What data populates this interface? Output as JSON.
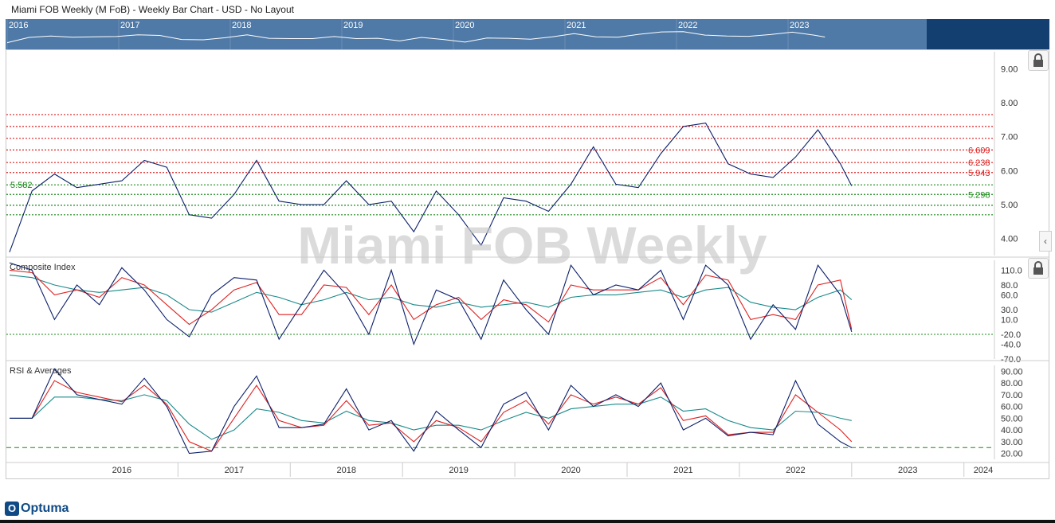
{
  "header": {
    "title": "Miami FOB Weekly (M FoB) - Weekly Bar Chart - USD - No Layout"
  },
  "navigator": {
    "years": [
      "2016",
      "2017",
      "2018",
      "2019",
      "2020",
      "2021",
      "2022",
      "2023"
    ]
  },
  "watermark": "Miami FOB Weekly",
  "colors": {
    "price": "#0b1f6b",
    "red": "#e02020",
    "green": "#1a8a1a",
    "teal": "#1a8a8a",
    "navy": "#0b1f6b",
    "nav": "#4f79a6"
  },
  "icons": [
    "lock-icon",
    "chevron-left-icon",
    "optuma-logo-icon"
  ],
  "brand": {
    "logo_text": "Optuma",
    "logo_mark": "O"
  },
  "chart_data": [
    {
      "type": "line",
      "title": "Miami FOB Weekly",
      "x_axis_labels": [
        "2016",
        "2017",
        "2018",
        "2019",
        "2020",
        "2021",
        "2022",
        "2023",
        "2024"
      ],
      "y_ticks": [
        "9.00",
        "8.00",
        "7.00",
        "6.00",
        "5.00",
        "4.00"
      ],
      "ylim": [
        3.5,
        9.5
      ],
      "resistance_levels": [
        7.65,
        7.3,
        6.95,
        6.609,
        6.238,
        5.943
      ],
      "support_levels": [
        5.582,
        5.298,
        4.98,
        4.7
      ],
      "level_labels": {
        "left": "5.582",
        "r1": "6.609",
        "r2": "6.238",
        "r3": "5.943",
        "s1": "5.298"
      },
      "series": [
        {
          "x": [
            2015.5,
            2015.7,
            2015.9,
            2016.1,
            2016.3,
            2016.5,
            2016.7,
            2016.9,
            2017.1,
            2017.3,
            2017.5,
            2017.7,
            2017.9,
            2018.1,
            2018.3,
            2018.5,
            2018.7,
            2018.9,
            2019.1,
            2019.3,
            2019.5,
            2019.7,
            2019.9,
            2020.1,
            2020.3,
            2020.5,
            2020.7,
            2020.9,
            2021.1,
            2021.3,
            2021.5,
            2021.7,
            2021.9,
            2022.1,
            2022.3,
            2022.5,
            2022.7,
            2022.9,
            2023.0
          ],
          "values": [
            3.6,
            5.4,
            5.9,
            5.5,
            5.6,
            5.7,
            6.3,
            6.1,
            4.7,
            4.6,
            5.3,
            6.3,
            5.1,
            5.0,
            5.0,
            5.7,
            5.0,
            5.1,
            4.2,
            5.4,
            4.7,
            3.8,
            5.2,
            5.1,
            4.8,
            5.6,
            6.7,
            5.6,
            5.5,
            6.5,
            7.3,
            7.4,
            6.2,
            5.9,
            5.8,
            6.4,
            7.2,
            6.2,
            5.55
          ]
        }
      ]
    },
    {
      "type": "line",
      "title": "Composite Index",
      "y_ticks": [
        "110.0",
        "80.0",
        "60.0",
        "30.0",
        "10.0",
        "-20.0",
        "-40.0",
        "-70.0"
      ],
      "ylim": [
        -70,
        130
      ],
      "x": [
        2015.5,
        2015.7,
        2015.9,
        2016.1,
        2016.3,
        2016.5,
        2016.7,
        2016.9,
        2017.1,
        2017.3,
        2017.5,
        2017.7,
        2017.9,
        2018.1,
        2018.3,
        2018.5,
        2018.7,
        2018.9,
        2019.1,
        2019.3,
        2019.5,
        2019.7,
        2019.9,
        2020.1,
        2020.3,
        2020.5,
        2020.7,
        2020.9,
        2021.1,
        2021.3,
        2021.5,
        2021.7,
        2021.9,
        2022.1,
        2022.3,
        2022.5,
        2022.7,
        2022.9,
        2023.0
      ],
      "series": [
        {
          "values": [
            125,
            110,
            10,
            80,
            40,
            115,
            70,
            10,
            -25,
            60,
            95,
            90,
            -30,
            40,
            110,
            60,
            -20,
            110,
            -40,
            70,
            50,
            -30,
            90,
            30,
            -20,
            120,
            60,
            80,
            70,
            110,
            10,
            120,
            80,
            -30,
            40,
            -10,
            120,
            60,
            -15
          ]
        },
        {
          "values": [
            110,
            105,
            60,
            70,
            55,
            95,
            80,
            40,
            0,
            30,
            70,
            85,
            20,
            20,
            80,
            75,
            20,
            80,
            10,
            40,
            55,
            10,
            50,
            40,
            5,
            80,
            70,
            70,
            70,
            95,
            40,
            100,
            90,
            10,
            20,
            10,
            80,
            90,
            -10
          ]
        },
        {
          "values": [
            100,
            95,
            80,
            70,
            65,
            70,
            75,
            60,
            30,
            25,
            45,
            65,
            55,
            40,
            50,
            65,
            50,
            55,
            40,
            35,
            45,
            35,
            40,
            45,
            35,
            55,
            60,
            60,
            65,
            70,
            55,
            70,
            75,
            45,
            35,
            30,
            55,
            70,
            50
          ]
        }
      ],
      "series_colors": [
        "#0b1f6b",
        "#e02020",
        "#1a8a8a"
      ]
    },
    {
      "type": "line",
      "title": "RSI & Averages",
      "y_ticks": [
        "90.00",
        "80.00",
        "70.00",
        "60.00",
        "50.00",
        "40.00",
        "30.00",
        "20.00"
      ],
      "ylim": [
        15,
        95
      ],
      "threshold": 25,
      "x": [
        2015.5,
        2015.7,
        2015.9,
        2016.1,
        2016.3,
        2016.5,
        2016.7,
        2016.9,
        2017.1,
        2017.3,
        2017.5,
        2017.7,
        2017.9,
        2018.1,
        2018.3,
        2018.5,
        2018.7,
        2018.9,
        2019.1,
        2019.3,
        2019.5,
        2019.7,
        2019.9,
        2020.1,
        2020.3,
        2020.5,
        2020.7,
        2020.9,
        2021.1,
        2021.3,
        2021.5,
        2021.7,
        2021.9,
        2022.1,
        2022.3,
        2022.5,
        2022.7,
        2022.9,
        2023.0
      ],
      "series": [
        {
          "values": [
            50,
            50,
            92,
            70,
            66,
            62,
            84,
            60,
            20,
            22,
            60,
            86,
            42,
            42,
            45,
            75,
            40,
            48,
            22,
            56,
            40,
            25,
            62,
            72,
            40,
            78,
            60,
            70,
            60,
            80,
            40,
            50,
            35,
            38,
            36,
            82,
            45,
            30,
            25
          ]
        },
        {
          "values": [
            50,
            50,
            82,
            72,
            68,
            64,
            78,
            62,
            30,
            22,
            50,
            78,
            48,
            42,
            44,
            65,
            44,
            46,
            30,
            48,
            42,
            30,
            55,
            65,
            45,
            70,
            62,
            68,
            62,
            76,
            48,
            52,
            36,
            38,
            38,
            70,
            55,
            40,
            30
          ]
        },
        {
          "values": [
            50,
            50,
            68,
            68,
            66,
            65,
            70,
            65,
            45,
            32,
            40,
            58,
            55,
            48,
            46,
            56,
            48,
            46,
            40,
            44,
            44,
            40,
            48,
            55,
            50,
            58,
            60,
            62,
            62,
            68,
            56,
            58,
            48,
            42,
            40,
            56,
            55,
            50,
            48
          ]
        }
      ],
      "series_colors": [
        "#0b1f6b",
        "#e02020",
        "#1a8a8a"
      ]
    }
  ]
}
